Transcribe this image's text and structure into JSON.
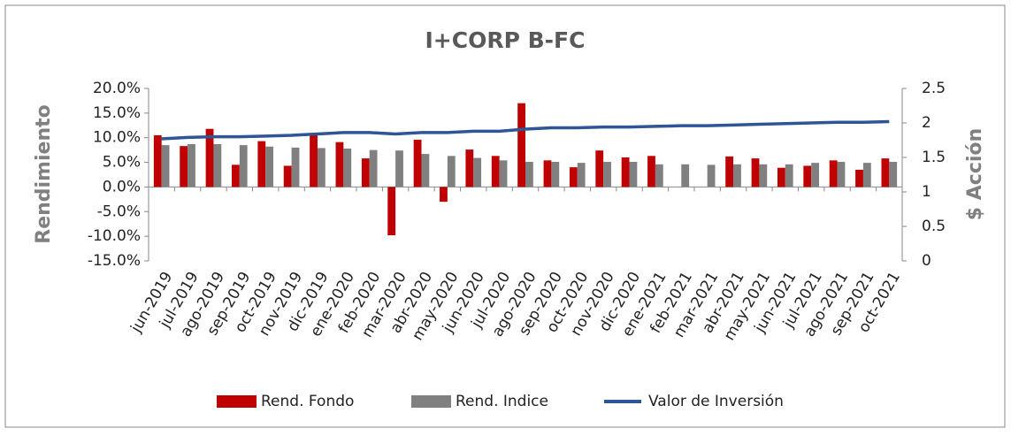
{
  "chart_data": {
    "type": "bar_line",
    "title": "I+CORP B-FC",
    "ylabel": "Rendimiento",
    "y2label": "$ Acción",
    "categories": [
      "jun-2019",
      "jul-2019",
      "ago-2019",
      "sep-2019",
      "oct-2019",
      "nov-2019",
      "dic-2019",
      "ene-2020",
      "feb-2020",
      "mar-2020",
      "abr-2020",
      "may-2020",
      "jun-2020",
      "jul-2020",
      "ago-2020",
      "sep-2020",
      "oct-2020",
      "nov-2020",
      "dic-2020",
      "ene-2021",
      "feb-2021",
      "mar-2021",
      "abr-2021",
      "may-2021",
      "jun-2021",
      "jul-2021",
      "ago-2021",
      "sep-2021",
      "oct-2021"
    ],
    "series": [
      {
        "name": "Rend. Fondo",
        "color": "#c00000",
        "type": "bar",
        "values": [
          10.5,
          8.3,
          11.8,
          4.5,
          9.3,
          4.3,
          10.6,
          9.1,
          5.8,
          -9.8,
          9.6,
          -3.0,
          7.6,
          6.3,
          17.0,
          5.4,
          4.0,
          7.4,
          6.0,
          6.3,
          0,
          0,
          6.2,
          5.8,
          3.9,
          4.3,
          5.4,
          3.5,
          5.8
        ]
      },
      {
        "name": "Rend. Indice",
        "color": "#808080",
        "type": "bar",
        "values": [
          8.5,
          8.7,
          8.7,
          8.5,
          8.2,
          8.0,
          7.9,
          7.8,
          7.5,
          7.4,
          6.7,
          6.3,
          5.9,
          5.4,
          5.1,
          5.1,
          4.9,
          5.1,
          5.1,
          4.6,
          4.6,
          4.5,
          4.6,
          4.6,
          4.6,
          4.9,
          5.1,
          4.9,
          5.1
        ]
      },
      {
        "name": "Valor de Inversión",
        "color": "#2f5597",
        "type": "line",
        "axis": "y2",
        "values": [
          1.77,
          1.79,
          1.8,
          1.8,
          1.81,
          1.82,
          1.84,
          1.86,
          1.86,
          1.84,
          1.86,
          1.86,
          1.88,
          1.88,
          1.91,
          1.93,
          1.93,
          1.94,
          1.94,
          1.95,
          1.96,
          1.96,
          1.97,
          1.98,
          1.99,
          2.0,
          2.01,
          2.01,
          2.02
        ]
      }
    ],
    "ylim": [
      -15,
      20
    ],
    "yticks": [
      {
        "value": -15,
        "label": "-15.0%"
      },
      {
        "value": -10,
        "label": "-10.0%"
      },
      {
        "value": -5,
        "label": "-5.0%"
      },
      {
        "value": 0,
        "label": "0.0%"
      },
      {
        "value": 5,
        "label": "5.0%"
      },
      {
        "value": 10,
        "label": "10.0%"
      },
      {
        "value": 15,
        "label": "15.0%"
      },
      {
        "value": 20,
        "label": "20.0%"
      }
    ],
    "y2lim": [
      0,
      2.5
    ],
    "y2ticks": [
      0,
      0.5,
      1,
      1.5,
      2,
      2.5
    ],
    "legend": "bottom"
  }
}
